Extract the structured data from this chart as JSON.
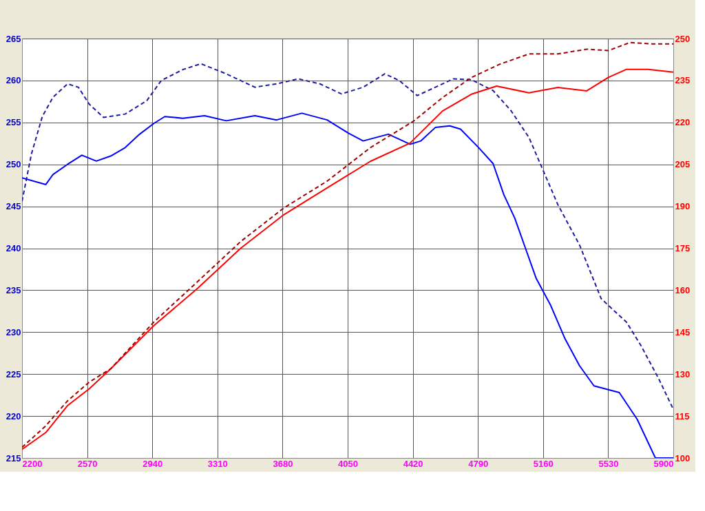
{
  "chart_data": {
    "type": "line",
    "xlim": [
      2200,
      5900
    ],
    "xticks": [
      2200,
      2570,
      2940,
      3310,
      3680,
      4050,
      4420,
      4790,
      5160,
      5530,
      5900
    ],
    "ylim": [
      215,
      265
    ],
    "yticks": [
      215,
      220,
      225,
      230,
      235,
      240,
      245,
      250,
      255,
      260,
      265
    ],
    "y2lim": [
      100,
      250
    ],
    "y2ticks": [
      100,
      115,
      130,
      145,
      160,
      175,
      190,
      205,
      220,
      235,
      250
    ],
    "grid": true,
    "marker": "none",
    "series": [
      {
        "color": "#0000ff",
        "line_style": "solid",
        "x": [
          2200,
          2335,
          2376,
          2458,
          2540,
          2622,
          2704,
          2786,
          2868,
          2950,
          3011,
          3114,
          3237,
          3360,
          3523,
          3646,
          3790,
          3933,
          4056,
          4138,
          4281,
          4404,
          4466,
          4548,
          4630,
          4691,
          4794,
          4876,
          4937,
          4999,
          5060,
          5121,
          5203,
          5285,
          5367,
          5449,
          5593,
          5695,
          5798,
          5900
        ],
        "values": [
          248.4,
          247.6,
          248.8,
          250,
          251.1,
          250.4,
          251,
          252,
          253.6,
          254.9,
          255.7,
          255.5,
          255.8,
          255.2,
          255.8,
          255.3,
          256.1,
          255.3,
          253.7,
          252.8,
          253.6,
          252.4,
          252.8,
          254.4,
          254.6,
          254.2,
          252,
          250.1,
          246.4,
          243.6,
          240,
          236.4,
          233.2,
          229.2,
          226,
          223.6,
          222.8,
          219.6,
          215,
          215
        ]
      },
      {
        "color": "#1c1ca0",
        "line_style": "dashed",
        "x": [
          2200,
          2253,
          2315,
          2376,
          2458,
          2520,
          2581,
          2663,
          2786,
          2909,
          2991,
          3114,
          3216,
          3360,
          3523,
          3646,
          3769,
          3892,
          4015,
          4138,
          4261,
          4343,
          4445,
          4548,
          4650,
          4753,
          4876,
          4978,
          5080,
          5162,
          5244,
          5367,
          5490,
          5551,
          5634,
          5716,
          5818,
          5900
        ],
        "values": [
          245.6,
          251.2,
          255.7,
          258,
          259.6,
          259.2,
          257.2,
          255.6,
          256,
          257.6,
          260,
          261.3,
          262,
          260.8,
          259.2,
          259.6,
          260.2,
          259.6,
          258.4,
          259.2,
          260.8,
          260,
          258.2,
          259.2,
          260.2,
          260.1,
          258.8,
          256.4,
          253.2,
          249.2,
          245.2,
          240.4,
          234,
          232.8,
          231.2,
          228.4,
          224.4,
          220.8
        ]
      },
      {
        "color": "#ff0000",
        "line_style": "solid",
        "axis": "y2",
        "x": [
          2200,
          2335,
          2458,
          2581,
          2704,
          2950,
          3196,
          3442,
          3687,
          3933,
          4179,
          4404,
          4589,
          4753,
          4896,
          5080,
          5244,
          5408,
          5531,
          5634,
          5757,
          5900
        ],
        "values": [
          103.1,
          109.1,
          118.7,
          124.7,
          131.9,
          147.4,
          160.6,
          175,
          187,
          196.6,
          206.1,
          212.6,
          224.1,
          230.1,
          233,
          230.6,
          232.5,
          231.3,
          236.1,
          239,
          239,
          238
        ]
      },
      {
        "color": "#a00000",
        "line_style": "dashed",
        "axis": "y2",
        "x": [
          2200,
          2335,
          2458,
          2581,
          2704,
          2950,
          3196,
          3442,
          3687,
          3933,
          4179,
          4425,
          4589,
          4753,
          4917,
          5080,
          5244,
          5408,
          5531,
          5654,
          5777,
          5900
        ],
        "values": [
          103.8,
          111.5,
          120.4,
          127.1,
          131.9,
          148.7,
          163,
          177.4,
          189.4,
          199,
          211,
          220.5,
          228.9,
          236.1,
          240.9,
          244.5,
          244.5,
          246.2,
          245.7,
          248.6,
          248.1,
          248.1
        ]
      }
    ]
  }
}
